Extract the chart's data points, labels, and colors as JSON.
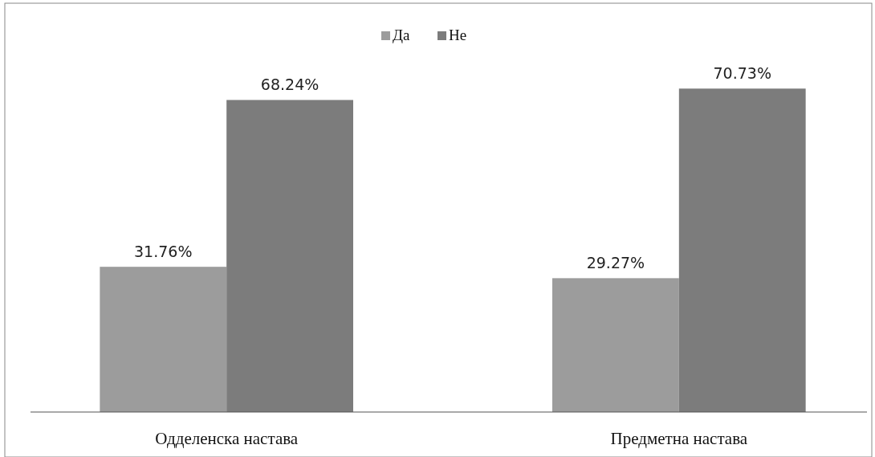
{
  "chart_data": {
    "type": "bar",
    "categories": [
      "Одделенска настава",
      "Предметна настава"
    ],
    "series": [
      {
        "name": "Да",
        "color": "#9c9c9c",
        "values": [
          31.76,
          29.27
        ],
        "value_labels": [
          "31.76%",
          "29.27%"
        ]
      },
      {
        "name": "Не",
        "color": "#7c7c7c",
        "values": [
          68.24,
          70.73
        ],
        "value_labels": [
          "68.24%",
          "70.73%"
        ]
      }
    ],
    "legend": "top"
  }
}
